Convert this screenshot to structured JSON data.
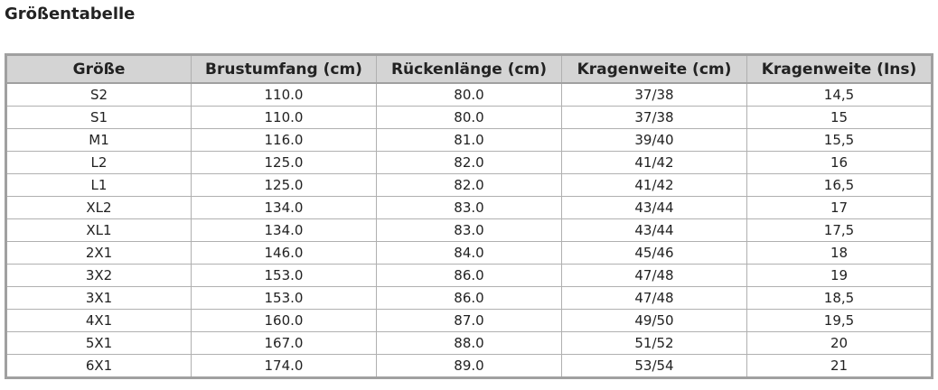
{
  "header": {
    "title": "Größentabelle"
  },
  "table": {
    "columns": [
      "Größe",
      "Brustumfang (cm)",
      "Rückenlänge (cm)",
      "Kragenweite (cm)",
      "Kragenweite (Ins)"
    ],
    "rows": [
      [
        "S2",
        "110.0",
        "80.0",
        "37/38",
        "14,5"
      ],
      [
        "S1",
        "110.0",
        "80.0",
        "37/38",
        "15"
      ],
      [
        "M1",
        "116.0",
        "81.0",
        "39/40",
        "15,5"
      ],
      [
        "L2",
        "125.0",
        "82.0",
        "41/42",
        "16"
      ],
      [
        "L1",
        "125.0",
        "82.0",
        "41/42",
        "16,5"
      ],
      [
        "XL2",
        "134.0",
        "83.0",
        "43/44",
        "17"
      ],
      [
        "XL1",
        "134.0",
        "83.0",
        "43/44",
        "17,5"
      ],
      [
        "2X1",
        "146.0",
        "84.0",
        "45/46",
        "18"
      ],
      [
        "3X2",
        "153.0",
        "86.0",
        "47/48",
        "19"
      ],
      [
        "3X1",
        "153.0",
        "86.0",
        "47/48",
        "18,5"
      ],
      [
        "4X1",
        "160.0",
        "87.0",
        "49/50",
        "19,5"
      ],
      [
        "5X1",
        "167.0",
        "88.0",
        "51/52",
        "20"
      ],
      [
        "6X1",
        "174.0",
        "89.0",
        "53/54",
        "21"
      ]
    ]
  }
}
